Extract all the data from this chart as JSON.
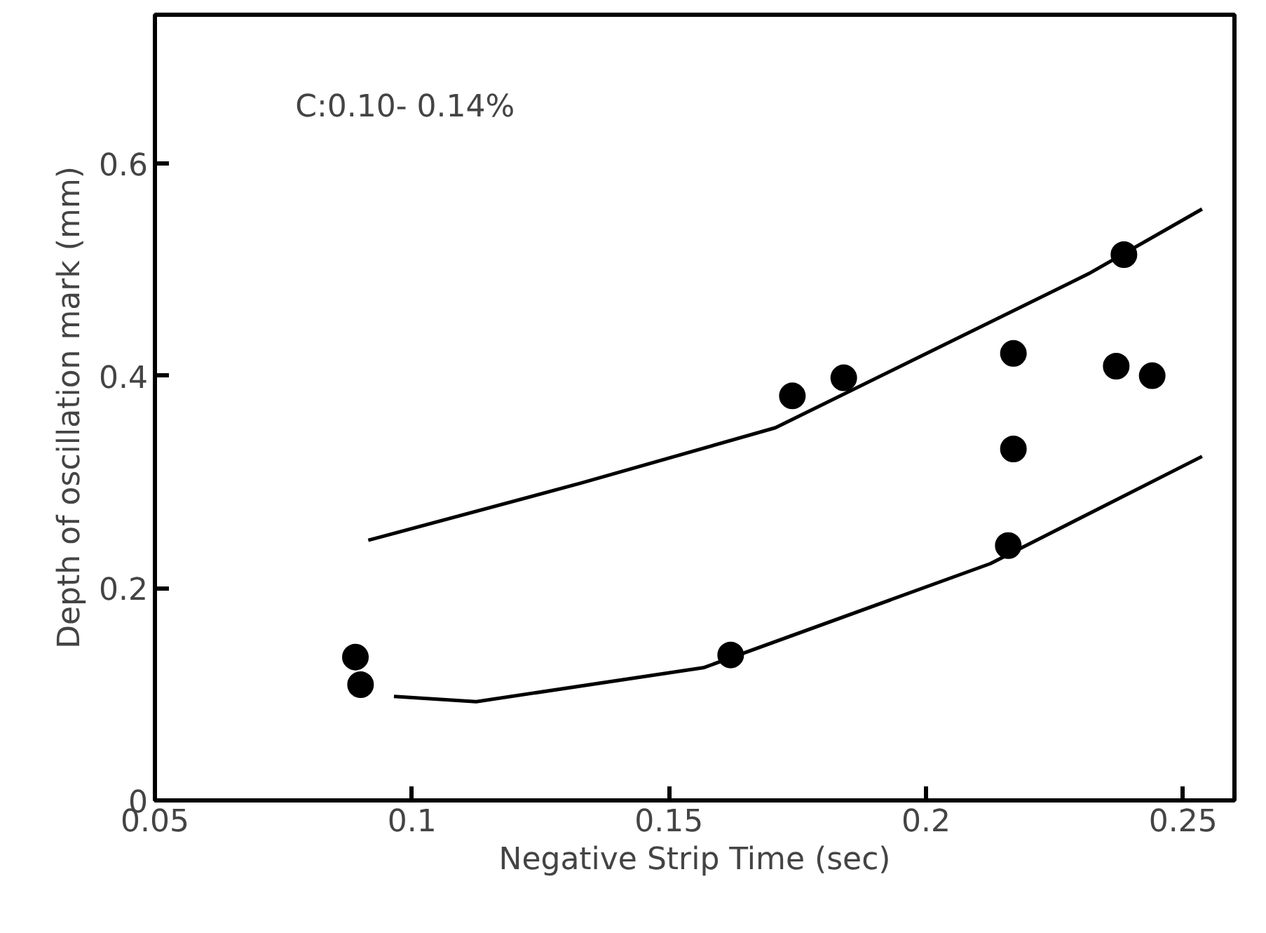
{
  "chart_data": {
    "type": "scatter",
    "xlabel": "Negative Strip Time (sec)",
    "ylabel": "Depth of oscillation mark (mm)",
    "annotations": [
      "C:0.10- 0.14%"
    ],
    "xlim": [
      0.05,
      0.26
    ],
    "ylim": [
      0,
      0.74
    ],
    "xticks": [
      {
        "value": 0.05,
        "label": "0.05"
      },
      {
        "value": 0.1,
        "label": "0.1"
      },
      {
        "value": 0.15,
        "label": "0.15"
      },
      {
        "value": 0.2,
        "label": "0.2"
      },
      {
        "value": 0.25,
        "label": "0.25"
      }
    ],
    "yticks": [
      0,
      {
        "value": 0.2,
        "label": "0.2"
      },
      {
        "value": 0.4,
        "label": "0.4"
      },
      {
        "value": 0.6,
        "label": "0.6"
      }
    ],
    "grid": false,
    "series": [
      {
        "marker": "circle",
        "color": "#000000",
        "x": [
          0.089,
          0.09,
          0.162,
          0.174,
          0.184,
          0.217,
          0.217,
          0.216,
          0.2385,
          0.237,
          0.244
        ],
        "values": [
          0.135,
          0.109,
          0.137,
          0.381,
          0.398,
          0.421,
          0.331,
          0.24,
          0.514,
          0.409,
          0.4
        ]
      },
      {
        "type": "line",
        "marker": "none",
        "color": "#000000",
        "x": [
          0.0915,
          0.133,
          0.1707,
          0.2316,
          0.2537
        ],
        "values": [
          0.245,
          0.299,
          0.351,
          0.496,
          0.557
        ]
      },
      {
        "type": "line",
        "marker": "none",
        "color": "#000000",
        "x": [
          0.0965,
          0.1125,
          0.1567,
          0.2125,
          0.2537
        ],
        "values": [
          0.098,
          0.093,
          0.125,
          0.223,
          0.324
        ]
      }
    ]
  }
}
